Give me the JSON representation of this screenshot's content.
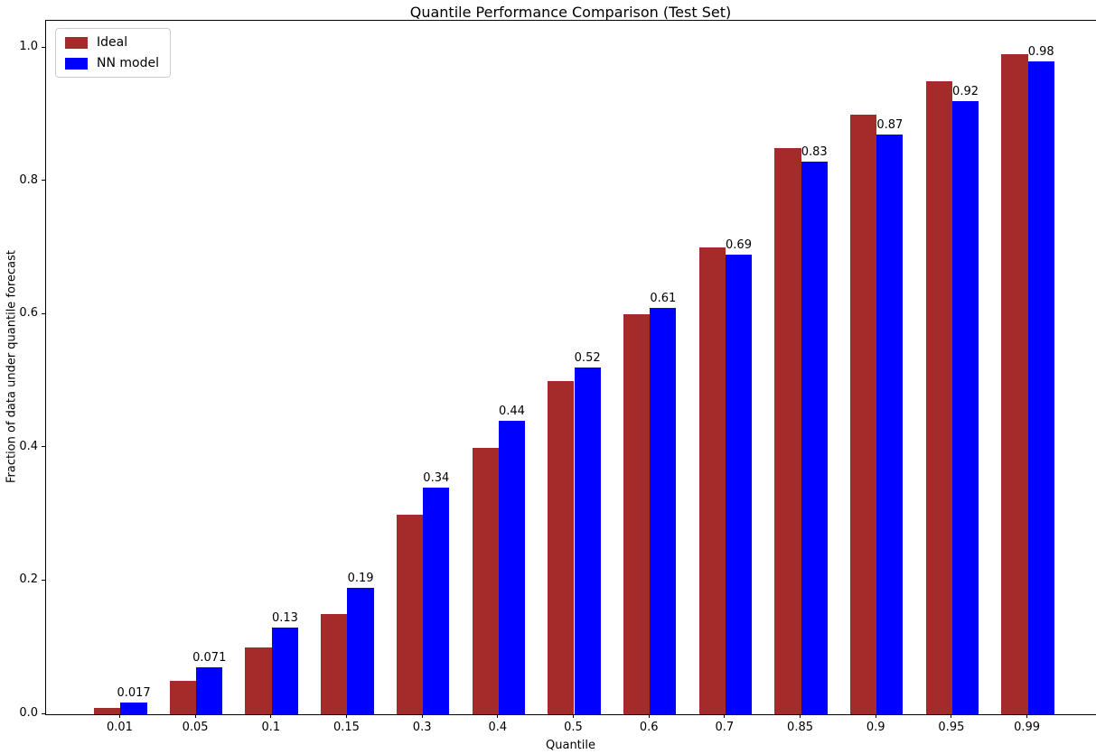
{
  "figure": {
    "title": "Quantile Performance Comparison (Test Set)",
    "xlabel": "Quantile",
    "ylabel": "Fraction of data under quantile forecast"
  },
  "chart_data": {
    "type": "bar",
    "title": "Quantile Performance Comparison (Test Set)",
    "xlabel": "Quantile",
    "ylabel": "Fraction of data under quantile forecast",
    "categories": [
      "0.01",
      "0.05",
      "0.1",
      "0.15",
      "0.3",
      "0.4",
      "0.5",
      "0.6",
      "0.7",
      "0.85",
      "0.9",
      "0.95",
      "0.99"
    ],
    "series": [
      {
        "name": "Ideal",
        "color": "#A52A2A",
        "values": [
          0.01,
          0.05,
          0.1,
          0.15,
          0.3,
          0.4,
          0.5,
          0.6,
          0.7,
          0.85,
          0.9,
          0.95,
          0.99
        ]
      },
      {
        "name": "NN model",
        "color": "#0000FF",
        "values": [
          0.017,
          0.071,
          0.13,
          0.19,
          0.34,
          0.44,
          0.52,
          0.61,
          0.69,
          0.83,
          0.87,
          0.92,
          0.98
        ],
        "labels": [
          "0.017",
          "0.071",
          "0.13",
          "0.19",
          "0.34",
          "0.44",
          "0.52",
          "0.61",
          "0.69",
          "0.83",
          "0.87",
          "0.92",
          "0.98"
        ]
      }
    ],
    "yticks": [
      "0.0",
      "0.2",
      "0.4",
      "0.6",
      "0.8",
      "1.0"
    ],
    "ylim": [
      0,
      1.0407
    ],
    "bar_width": 0.35,
    "grid": false,
    "legend_position": "upper left"
  }
}
